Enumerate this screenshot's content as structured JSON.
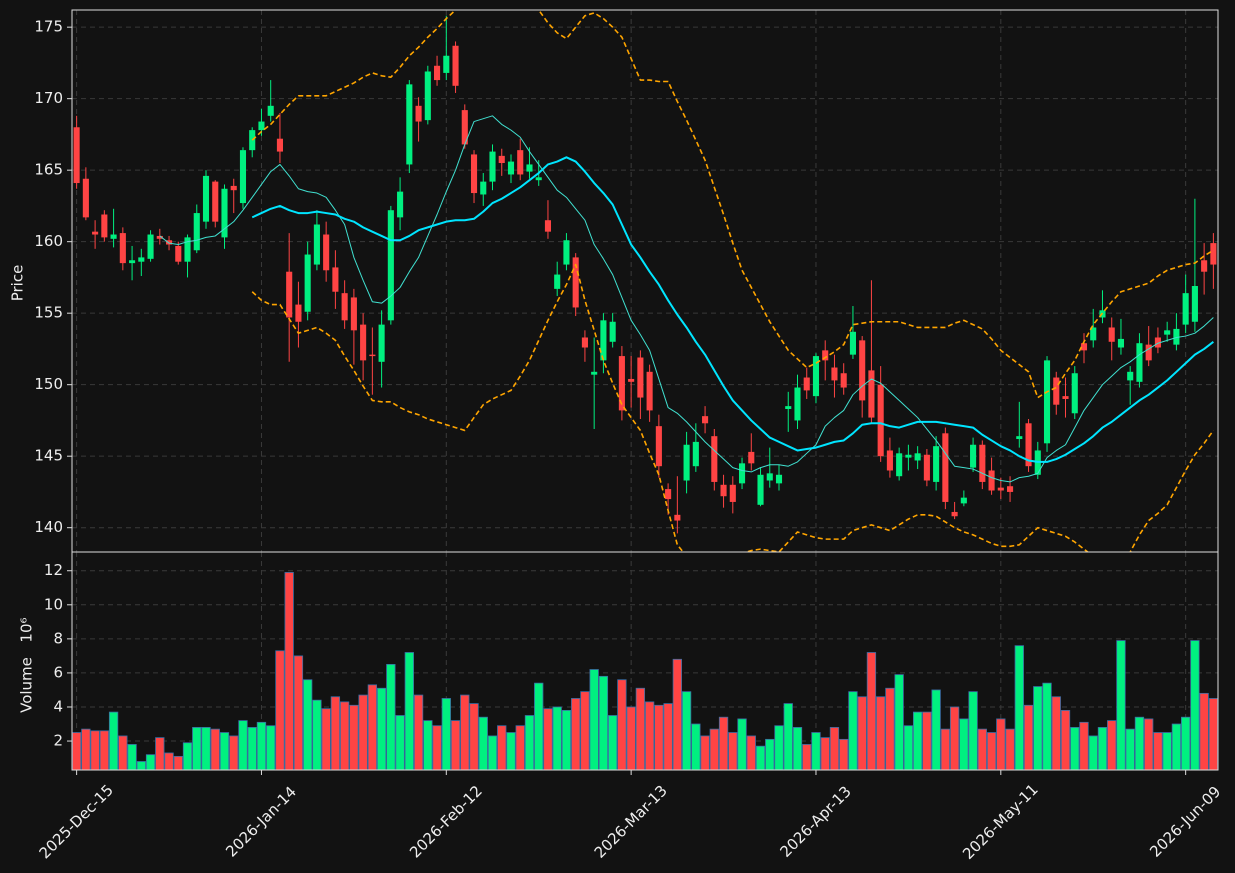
{
  "chart_data": {
    "type": "candlestick",
    "categories": [
      "2025-Dec-15",
      null,
      null,
      null,
      null,
      null,
      null,
      null,
      null,
      null,
      null,
      null,
      null,
      null,
      null,
      null,
      null,
      null,
      null,
      null,
      "2026-Jan-14",
      null,
      null,
      null,
      null,
      null,
      null,
      null,
      null,
      null,
      null,
      null,
      null,
      null,
      null,
      null,
      null,
      null,
      null,
      null,
      "2026-Feb-12",
      null,
      null,
      null,
      null,
      null,
      null,
      null,
      null,
      null,
      null,
      null,
      null,
      null,
      null,
      null,
      null,
      null,
      null,
      null,
      "2026-Mar-13",
      null,
      null,
      null,
      null,
      null,
      null,
      null,
      null,
      null,
      null,
      null,
      null,
      null,
      null,
      null,
      null,
      null,
      null,
      null,
      "2026-Apr-13",
      null,
      null,
      null,
      null,
      null,
      null,
      null,
      null,
      null,
      null,
      null,
      null,
      null,
      null,
      null,
      null,
      null,
      null,
      null,
      "2026-May-11",
      null,
      null,
      null,
      null,
      null,
      null,
      null,
      null,
      null,
      null,
      null,
      null,
      null,
      null,
      null,
      null,
      null,
      null,
      null,
      "2026-Jun-09",
      null,
      null,
      null
    ],
    "ylabel": "Price",
    "ylim": [
      138.3,
      176.2
    ],
    "yticks": [
      140,
      145,
      150,
      155,
      160,
      165,
      170,
      175
    ],
    "grid": true,
    "up_color": "#00f080",
    "down_color": "#ff4444",
    "open": [
      168.0,
      164.4,
      160.7,
      161.9,
      160.2,
      160.6,
      158.5,
      158.6,
      158.8,
      160.4,
      160.1,
      159.7,
      158.6,
      159.4,
      161.4,
      164.2,
      160.3,
      163.9,
      162.7,
      166.4,
      167.8,
      168.8,
      167.2,
      157.9,
      155.6,
      155.1,
      158.4,
      160.5,
      158.2,
      156.4,
      156.1,
      154.2,
      152.1,
      151.6,
      154.5,
      161.7,
      165.4,
      169.5,
      168.5,
      172.3,
      171.8,
      173.7,
      169.2,
      166.1,
      163.3,
      164.2,
      166.0,
      164.7,
      166.4,
      164.9,
      164.3,
      161.5,
      156.7,
      158.4,
      158.9,
      153.3,
      150.7,
      151.7,
      153.0,
      152.0,
      150.4,
      151.9,
      150.9,
      147.1,
      142.7,
      140.9,
      143.3,
      144.3,
      147.8,
      146.4,
      143.0,
      143.0,
      143.1,
      145.3,
      141.6,
      143.3,
      143.1,
      148.3,
      147.5,
      150.5,
      149.2,
      152.4,
      151.2,
      150.8,
      152.1,
      153.1,
      151.0,
      150.0,
      145.4,
      143.6,
      144.9,
      144.7,
      145.1,
      143.2,
      146.6,
      141.1,
      141.7,
      144.2,
      145.8,
      144.0,
      142.8,
      142.9,
      146.2,
      147.3,
      143.7,
      145.9,
      150.5,
      149.2,
      148.0,
      152.9,
      153.1,
      154.7,
      154.0,
      152.6,
      150.3,
      150.2,
      152.8,
      153.3,
      153.5,
      152.8,
      154.2,
      154.4,
      158.7,
      159.9
    ],
    "high": [
      168.8,
      165.2,
      161.5,
      162.2,
      162.3,
      161.0,
      159.7,
      159.5,
      160.8,
      160.9,
      160.4,
      160.0,
      160.5,
      162.6,
      165.0,
      164.3,
      164.0,
      164.4,
      166.6,
      168.0,
      169.3,
      171.3,
      169.0,
      160.6,
      157.2,
      160.0,
      162.2,
      161.4,
      159.4,
      157.3,
      156.7,
      155.0,
      154.0,
      155.2,
      162.5,
      164.5,
      171.3,
      170.1,
      172.3,
      173.0,
      175.8,
      174.0,
      169.6,
      166.4,
      164.8,
      166.8,
      166.5,
      166.1,
      167.2,
      166.6,
      165.7,
      162.9,
      158.6,
      160.6,
      159.2,
      153.8,
      153.3,
      155.0,
      155.0,
      152.7,
      152.0,
      152.4,
      151.4,
      147.9,
      143.1,
      143.6,
      146.7,
      147.3,
      148.5,
      146.9,
      143.7,
      143.6,
      144.9,
      146.6,
      144.2,
      145.6,
      144.4,
      149.5,
      150.7,
      151.2,
      152.2,
      153.1,
      152.1,
      151.5,
      155.5,
      153.4,
      157.3,
      151.3,
      146.3,
      145.6,
      145.8,
      145.7,
      145.5,
      146.4,
      147.0,
      141.8,
      142.6,
      146.3,
      146.1,
      144.9,
      143.5,
      143.6,
      148.8,
      147.6,
      146.0,
      152.0,
      150.9,
      150.5,
      151.3,
      153.6,
      155.3,
      156.6,
      154.7,
      154.6,
      151.3,
      153.6,
      154.1,
      154.0,
      154.4,
      155.0,
      157.7,
      163.0,
      159.9,
      160.6
    ],
    "low": [
      163.7,
      161.5,
      159.5,
      160.0,
      159.6,
      158.0,
      157.3,
      157.6,
      158.6,
      159.8,
      159.4,
      158.4,
      157.5,
      159.2,
      160.9,
      161.0,
      159.5,
      162.0,
      162.3,
      165.9,
      167.4,
      168.4,
      165.5,
      151.6,
      152.6,
      154.5,
      158.0,
      157.2,
      155.3,
      153.9,
      151.4,
      150.3,
      149.3,
      149.8,
      154.2,
      160.8,
      164.8,
      167.0,
      168.2,
      170.9,
      171.3,
      170.4,
      166.5,
      162.7,
      162.5,
      163.6,
      164.6,
      164.1,
      164.3,
      164.4,
      163.9,
      160.2,
      156.2,
      158.0,
      154.8,
      151.6,
      146.9,
      150.8,
      152.6,
      147.5,
      148.4,
      147.6,
      147.4,
      143.5,
      140.9,
      139.6,
      142.4,
      143.9,
      146.6,
      142.6,
      141.4,
      141.0,
      142.7,
      144.0,
      141.5,
      142.8,
      142.6,
      146.7,
      146.9,
      149.0,
      148.7,
      150.3,
      149.1,
      149.3,
      151.8,
      147.7,
      147.3,
      144.6,
      143.5,
      143.3,
      144.0,
      144.1,
      142.9,
      142.6,
      141.3,
      140.6,
      141.5,
      143.9,
      142.7,
      142.3,
      142.0,
      141.8,
      145.6,
      143.9,
      143.4,
      145.3,
      147.9,
      147.7,
      147.6,
      151.5,
      152.6,
      154.3,
      151.7,
      152.1,
      148.6,
      149.8,
      151.3,
      152.2,
      153.0,
      152.4,
      153.6,
      153.7,
      156.3,
      156.7
    ],
    "close": [
      164.1,
      161.7,
      160.5,
      160.3,
      160.5,
      158.5,
      158.7,
      158.9,
      160.5,
      160.2,
      159.8,
      158.6,
      160.3,
      162.0,
      164.6,
      161.4,
      163.7,
      163.6,
      166.4,
      167.8,
      168.4,
      169.5,
      166.3,
      154.7,
      154.4,
      159.1,
      161.2,
      158.0,
      156.5,
      154.5,
      153.8,
      151.7,
      152.0,
      154.2,
      162.2,
      163.5,
      171.0,
      168.4,
      171.9,
      171.3,
      173.0,
      170.9,
      166.8,
      163.4,
      164.2,
      166.3,
      165.5,
      165.6,
      164.7,
      165.4,
      164.5,
      160.7,
      157.7,
      160.1,
      155.4,
      152.6,
      150.9,
      154.5,
      154.4,
      148.2,
      150.2,
      149.1,
      148.2,
      144.3,
      142.0,
      140.5,
      145.8,
      146.0,
      147.3,
      143.2,
      142.2,
      141.8,
      144.5,
      144.5,
      143.7,
      143.8,
      143.7,
      148.5,
      149.8,
      149.6,
      152.0,
      151.7,
      150.3,
      149.8,
      153.7,
      148.9,
      147.7,
      145.0,
      144.0,
      145.2,
      145.1,
      145.2,
      143.3,
      145.7,
      141.8,
      140.8,
      142.1,
      145.8,
      143.2,
      142.6,
      142.6,
      142.5,
      146.4,
      144.3,
      145.4,
      151.7,
      148.6,
      149.0,
      150.8,
      152.4,
      154.0,
      155.2,
      153.0,
      153.2,
      150.9,
      152.9,
      151.7,
      152.6,
      153.8,
      153.9,
      156.4,
      156.9,
      157.9,
      158.4
    ],
    "series": [
      {
        "color": "#40e0d0",
        "style": "thin",
        "values": [
          null,
          null,
          null,
          null,
          null,
          null,
          null,
          null,
          null,
          160.4,
          159.9,
          159.8,
          160.0,
          160.1,
          160.3,
          160.4,
          160.9,
          161.4,
          162.2,
          163.1,
          164.0,
          164.9,
          165.4,
          164.6,
          163.7,
          163.5,
          163.4,
          163.1,
          162.2,
          161.2,
          158.9,
          157.3,
          155.8,
          155.7,
          156.2,
          156.8,
          157.9,
          158.9,
          160.4,
          161.9,
          163.5,
          165.0,
          166.8,
          168.4,
          168.6,
          168.8,
          168.2,
          167.8,
          167.3,
          166.3,
          165.4,
          164.5,
          163.6,
          163.1,
          162.3,
          161.5,
          159.8,
          158.8,
          157.7,
          156.1,
          154.5,
          153.5,
          152.4,
          150.4,
          148.4,
          148.0,
          147.4,
          146.7,
          146.0,
          145.4,
          144.8,
          144.2,
          144.0,
          143.9,
          144.2,
          144.4,
          144.4,
          144.3,
          144.6,
          145.2,
          145.8,
          147.1,
          147.7,
          148.2,
          149.3,
          149.9,
          150.4,
          150.1,
          149.5,
          148.9,
          148.3,
          147.7,
          146.9,
          146.1,
          145.2,
          144.3,
          144.2,
          144.1,
          143.8,
          143.5,
          143.3,
          143.2,
          143.5,
          143.6,
          143.8,
          144.9,
          145.4,
          145.8,
          147.0,
          148.2,
          149.1,
          150.0,
          150.6,
          151.2,
          151.6,
          152.1,
          152.5,
          152.9,
          153.1,
          153.3,
          153.4,
          153.6,
          154.1,
          154.7
        ]
      },
      {
        "color": "#00e5ff",
        "style": "thick",
        "values": [
          null,
          null,
          null,
          null,
          null,
          null,
          null,
          null,
          null,
          null,
          null,
          null,
          null,
          null,
          null,
          null,
          null,
          null,
          null,
          161.7,
          162.0,
          162.3,
          162.5,
          162.2,
          162.0,
          162.0,
          162.1,
          162.0,
          161.9,
          161.6,
          161.4,
          161.0,
          160.7,
          160.4,
          160.1,
          160.1,
          160.4,
          160.8,
          161.0,
          161.2,
          161.4,
          161.5,
          161.5,
          161.6,
          162.1,
          162.7,
          163.0,
          163.4,
          163.8,
          164.3,
          164.8,
          165.4,
          165.6,
          165.9,
          165.6,
          164.9,
          164.1,
          163.4,
          162.6,
          161.2,
          159.8,
          158.9,
          157.9,
          157.0,
          155.9,
          154.9,
          154.0,
          153.0,
          152.1,
          151.0,
          149.9,
          148.9,
          148.2,
          147.5,
          146.9,
          146.3,
          146.0,
          145.7,
          145.4,
          145.5,
          145.6,
          145.8,
          146.0,
          146.1,
          146.6,
          147.2,
          147.3,
          147.3,
          147.1,
          147.0,
          147.2,
          147.4,
          147.4,
          147.4,
          147.3,
          147.2,
          147.1,
          147.0,
          146.5,
          146.1,
          145.7,
          145.4,
          145.0,
          144.7,
          144.6,
          144.6,
          144.8,
          145.1,
          145.5,
          145.9,
          146.4,
          147.0,
          147.4,
          147.9,
          148.4,
          148.9,
          149.3,
          149.8,
          150.3,
          150.9,
          151.5,
          152.1,
          152.5,
          153.0
        ]
      },
      {
        "color": "#ffa500",
        "style": "dashed",
        "values": [
          null,
          null,
          null,
          null,
          null,
          null,
          null,
          null,
          null,
          null,
          null,
          null,
          null,
          null,
          null,
          null,
          null,
          null,
          null,
          167.1,
          167.7,
          168.2,
          168.9,
          169.6,
          170.2,
          170.2,
          170.2,
          170.2,
          170.5,
          170.8,
          171.1,
          171.5,
          171.8,
          171.6,
          171.5,
          172.2,
          173.0,
          173.6,
          174.3,
          174.9,
          175.6,
          176.2,
          176.8,
          177.2,
          177.5,
          177.6,
          177.5,
          177.3,
          177.0,
          176.6,
          176.2,
          175.3,
          174.6,
          174.2,
          175.0,
          175.8,
          176.0,
          175.6,
          175.0,
          174.3,
          172.8,
          171.3,
          171.3,
          171.2,
          171.2,
          169.8,
          168.5,
          167.1,
          165.7,
          163.8,
          161.9,
          159.9,
          158.0,
          156.8,
          155.6,
          154.4,
          153.4,
          152.4,
          151.8,
          151.2,
          151.5,
          151.9,
          152.3,
          152.8,
          154.2,
          154.3,
          154.4,
          154.4,
          154.4,
          154.4,
          154.2,
          154.0,
          154.0,
          154.0,
          154.0,
          154.3,
          154.5,
          154.2,
          153.9,
          153.2,
          152.4,
          151.9,
          151.4,
          150.9,
          149.1,
          149.5,
          149.8,
          150.8,
          151.7,
          153.0,
          154.2,
          155.0,
          155.8,
          156.5,
          156.7,
          156.9,
          157.1,
          157.6,
          158.0,
          158.2,
          158.4,
          158.5,
          159.0,
          159.4
        ]
      },
      {
        "color": "#ffa500",
        "style": "dashed",
        "values": [
          null,
          null,
          null,
          null,
          null,
          null,
          null,
          null,
          null,
          null,
          null,
          null,
          null,
          null,
          null,
          null,
          null,
          null,
          null,
          156.5,
          155.9,
          155.6,
          155.6,
          154.6,
          153.6,
          153.8,
          154.0,
          153.6,
          153.1,
          152.0,
          151.0,
          149.9,
          148.9,
          148.8,
          148.8,
          148.4,
          148.1,
          147.9,
          147.6,
          147.4,
          147.2,
          147.0,
          146.8,
          147.7,
          148.6,
          149.0,
          149.3,
          149.6,
          150.6,
          151.7,
          153.1,
          154.5,
          155.8,
          157.0,
          158.4,
          155.9,
          153.8,
          151.7,
          150.1,
          148.6,
          147.7,
          146.8,
          145.2,
          143.7,
          141.2,
          138.8,
          138.0,
          137.5,
          137.2,
          137.3,
          137.6,
          137.9,
          138.2,
          138.4,
          138.5,
          138.4,
          138.3,
          139.0,
          139.7,
          139.5,
          139.3,
          139.2,
          139.2,
          139.2,
          139.8,
          140.0,
          140.2,
          140.0,
          139.8,
          140.2,
          140.6,
          140.9,
          140.9,
          140.8,
          140.4,
          140.0,
          139.7,
          139.5,
          139.2,
          138.9,
          138.7,
          138.7,
          138.8,
          139.4,
          140.0,
          139.8,
          139.6,
          139.4,
          139.0,
          138.5,
          138.0,
          137.7,
          137.6,
          137.8,
          138.3,
          139.5,
          140.5,
          141.0,
          141.6,
          142.8,
          144.0,
          145.1,
          145.9,
          146.8
        ]
      }
    ],
    "volume": {
      "ylabel": "Volume",
      "ylabel_scale": "10⁶",
      "ylim": [
        0.3,
        13.1
      ],
      "yticks": [
        2,
        4,
        6,
        8,
        10,
        12
      ],
      "edge_color": "#3a6ea5",
      "values": [
        2.5,
        2.7,
        2.6,
        2.6,
        3.7,
        2.3,
        1.8,
        0.8,
        1.2,
        2.2,
        1.3,
        1.1,
        1.9,
        2.8,
        2.8,
        2.7,
        2.5,
        2.3,
        3.2,
        2.8,
        3.1,
        2.9,
        7.3,
        11.9,
        7.0,
        5.6,
        4.4,
        3.9,
        4.6,
        4.3,
        4.1,
        4.7,
        5.3,
        5.1,
        6.5,
        3.5,
        7.2,
        4.7,
        3.2,
        2.9,
        4.5,
        3.2,
        4.7,
        4.2,
        3.4,
        2.3,
        2.9,
        2.5,
        2.9,
        3.5,
        5.4,
        3.9,
        4.0,
        3.8,
        4.5,
        4.9,
        6.2,
        5.8,
        3.5,
        5.6,
        4.0,
        5.1,
        4.3,
        4.1,
        4.2,
        6.8,
        4.9,
        3.0,
        2.3,
        2.7,
        3.4,
        2.5,
        3.3,
        2.3,
        1.7,
        2.1,
        2.9,
        4.2,
        2.8,
        1.8,
        2.5,
        2.2,
        2.8,
        2.1,
        4.9,
        4.6,
        7.2,
        4.6,
        5.1,
        5.9,
        2.9,
        3.7,
        3.7,
        5.0,
        2.7,
        4.0,
        3.3,
        4.9,
        2.7,
        2.5,
        3.3,
        2.7,
        7.6,
        4.1,
        5.2,
        5.4,
        4.6,
        3.8,
        2.8,
        3.1,
        2.3,
        2.8,
        3.2,
        7.9,
        2.7,
        3.4,
        3.3,
        2.5,
        2.5,
        3.0,
        3.4,
        7.9,
        4.8,
        4.5
      ]
    }
  }
}
